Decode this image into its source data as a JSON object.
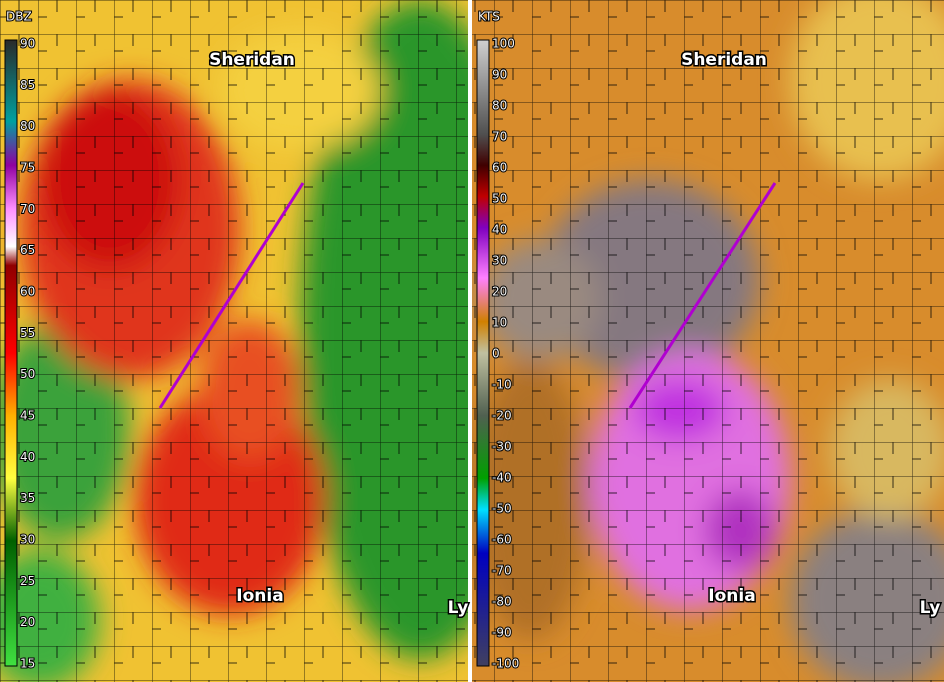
{
  "panels": [
    {
      "unit": "DBZ",
      "scale": [
        90,
        85,
        80,
        75,
        70,
        65,
        60,
        55,
        50,
        45,
        40,
        35,
        30,
        25,
        20,
        15
      ],
      "towns": [
        "Sheridan",
        "Ionia",
        "Ly"
      ]
    },
    {
      "unit": "KTS",
      "scale": [
        100,
        90,
        80,
        70,
        60,
        50,
        40,
        30,
        20,
        10,
        0,
        -10,
        -20,
        -30,
        -40,
        -50,
        -60,
        -70,
        -80,
        -90,
        -100
      ],
      "towns": [
        "Sheridan",
        "Ionia",
        "Ly"
      ]
    }
  ]
}
